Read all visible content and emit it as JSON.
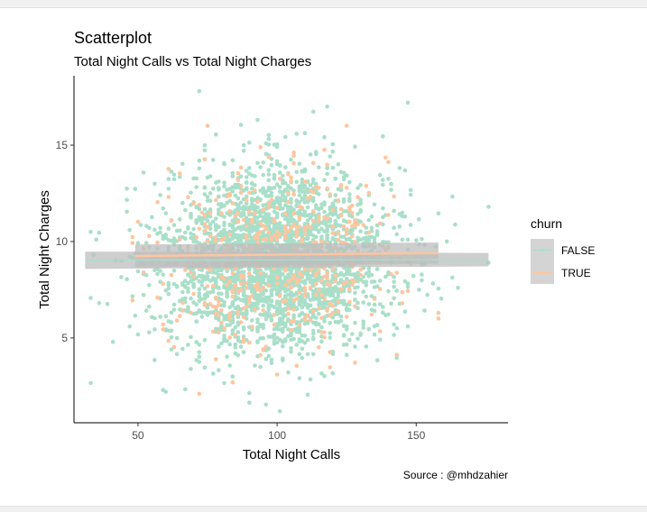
{
  "chart_data": {
    "type": "scatter",
    "title": "Scatterplot",
    "subtitle": "Total Night Calls vs Total Night Charges",
    "xlabel": "Total Night Calls",
    "ylabel": "Total Night Charges",
    "caption": "Source : @mhdzahier",
    "xlim": [
      27,
      183
    ],
    "ylim": [
      0.6,
      18.6
    ],
    "xticks": [
      50,
      100,
      150
    ],
    "yticks": [
      5,
      10,
      15
    ],
    "xtick_labels": [
      "50",
      "100",
      "150"
    ],
    "ytick_labels": [
      "5",
      "10",
      "15"
    ],
    "grid": false,
    "legend": {
      "title": "churn",
      "position": "right",
      "entries": [
        "FALSE",
        "TRUE"
      ]
    },
    "colors": {
      "FALSE": "#a9dfc9",
      "TRUE": "#fcc6a0",
      "band": "#bdbdbd",
      "axis": "#333333"
    },
    "distribution": {
      "x_mean": 100,
      "x_sd": 20,
      "y_mean": 9.1,
      "y_sd": 2.3,
      "n_false": 2850,
      "n_true": 483
    },
    "series": [
      {
        "name": "FALSE",
        "points": [
          [
            35,
            10.1
          ],
          [
            41,
            4.8
          ],
          [
            47,
            5.6
          ],
          [
            59,
            2.3
          ],
          [
            60,
            2.2
          ],
          [
            72,
            17.8
          ],
          [
            101,
            1.2
          ],
          [
            118,
            17.0
          ],
          [
            147,
            17.2
          ],
          [
            176,
            11.8
          ],
          [
            176,
            8.9
          ],
          [
            165,
            7.6
          ],
          [
            33,
            10.5
          ],
          [
            44,
            9.0
          ],
          [
            62,
            4.4
          ],
          [
            84,
            3.0
          ]
        ],
        "fit": {
          "x": [
            31,
            176
          ],
          "y": [
            9.03,
            9.06
          ],
          "se": [
            0.45,
            0.35
          ]
        }
      },
      {
        "name": "TRUE",
        "points": [
          [
            75,
            16.0
          ],
          [
            72,
            2.1
          ],
          [
            158,
            6.3
          ],
          [
            52,
            8.4
          ],
          [
            145,
            6.8
          ]
        ],
        "fit": {
          "x": [
            49,
            158
          ],
          "y": [
            9.25,
            9.4
          ],
          "se": [
            0.6,
            0.55
          ]
        }
      }
    ]
  }
}
